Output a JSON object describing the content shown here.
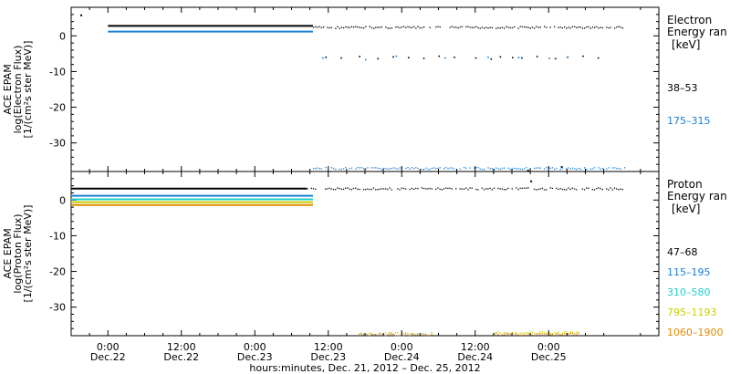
{
  "chart_data": [
    {
      "type": "scatter",
      "panel": "electron",
      "ylabel": [
        "ACE EPAM",
        "log(Electron Flux)",
        "[1/(cm²s ster MeV)]"
      ],
      "ylim": [
        -38,
        8
      ],
      "yticks": [
        0,
        -10,
        -20,
        -30
      ],
      "xlim_hours": [
        0,
        96
      ],
      "legend": {
        "title": "Electron",
        "subtitle": "Energy ran",
        "unit": "[keV]",
        "placement": "right",
        "entries": [
          {
            "label": "38–53",
            "color": "#000000"
          },
          {
            "label": "175–315",
            "color": "#1a7fd4"
          }
        ]
      },
      "series": [
        {
          "name": "38–53",
          "color": "#000000",
          "segments": [
            {
              "x0": 6,
              "x1": 39.5,
              "y": 2.8,
              "style": "solid"
            },
            {
              "x0": 39.5,
              "x1": 90.5,
              "y": 2.5,
              "style": "dots"
            }
          ],
          "points": [
            [
              41,
              -5.5
            ],
            [
              47,
              -6.0
            ],
            [
              53,
              -5.8
            ],
            [
              58,
              -6.2
            ],
            [
              61.5,
              -5.5
            ],
            [
              66,
              -6.0
            ],
            [
              69,
              -5.2
            ],
            [
              73,
              -6.0
            ],
            [
              76,
              -5.8
            ],
            [
              86,
              -5.5
            ],
            [
              88,
              -6.2
            ],
            [
              92,
              -5.8
            ],
            [
              94,
              -6.2
            ],
            [
              100,
              -5.8
            ],
            [
              103,
              -6.4
            ],
            [
              108,
              -5.5
            ],
            [
              113,
              -5.7
            ],
            [
              120,
              -6.0
            ],
            [
              123,
              -5.6
            ],
            [
              127,
              -5.9
            ],
            [
              131,
              -6.1
            ],
            [
              135,
              -5.4
            ],
            [
              138,
              -6.0
            ]
          ],
          "points_hours": [
            41.5,
            44,
            47,
            50,
            52.5,
            55,
            57.5,
            60,
            62.5,
            66,
            68.5,
            70,
            72,
            73.5,
            76,
            79,
            81,
            83.5,
            86
          ],
          "points_y": [
            -5.8,
            -6.0,
            -5.6,
            -6.2,
            -5.7,
            -5.9,
            -6.1,
            -5.5,
            -5.8,
            -6.0,
            -6.3,
            -5.7,
            -5.9,
            -6.0,
            -5.6,
            -6.2,
            -5.8,
            -5.5,
            -6.0
          ],
          "outliers": [
            [
              1.5,
              6.0
            ],
            [
              74.5,
              -37.5
            ],
            [
              80,
              -36.5
            ]
          ]
        },
        {
          "name": "175–315",
          "color": "#1a7fd4",
          "segments": [
            {
              "x0": 6,
              "x1": 39.5,
              "y": 1.2,
              "style": "solid"
            },
            {
              "x0": 39.5,
              "x1": 90.5,
              "y": -37.0,
              "style": "dots"
            }
          ],
          "points_hours": [
            41,
            48,
            53,
            61,
            68,
            73,
            78,
            81
          ],
          "points_y": [
            -6.0,
            -6.5,
            -5.5,
            -6.0,
            -5.8,
            -5.9,
            -6.1,
            -5.7
          ]
        }
      ]
    },
    {
      "type": "scatter",
      "panel": "proton",
      "ylabel": [
        "ACE EPAM",
        "log(Proton Flux)",
        "[1/(cm²s ster MeV)]"
      ],
      "ylim": [
        -38,
        8
      ],
      "yticks": [
        0,
        -10,
        -20,
        -30
      ],
      "xlim_hours": [
        0,
        96
      ],
      "legend": {
        "title": "Proton",
        "subtitle": "Energy ran",
        "unit": "[keV]",
        "placement": "right",
        "entries": [
          {
            "label": "47–68",
            "color": "#000000"
          },
          {
            "label": "115–195",
            "color": "#1a7fd4"
          },
          {
            "label": "310–580",
            "color": "#22cccc"
          },
          {
            "label": "795–1193",
            "color": "#cccc00"
          },
          {
            "label": "1060–1900",
            "color": "#e08a00"
          }
        ]
      },
      "series": [
        {
          "name": "47–68",
          "color": "#000000",
          "segments": [
            {
              "x0": 0,
              "x1": 38.5,
              "y": 3.2,
              "style": "solid"
            },
            {
              "x0": 38.5,
              "x1": 90.5,
              "y": 3.3,
              "style": "dots"
            }
          ],
          "outliers": [
            [
              75,
              5.5
            ]
          ]
        },
        {
          "name": "115–195",
          "color": "#1a7fd4",
          "segments": [
            {
              "x0": 0,
              "x1": 39.5,
              "y": 1.2,
              "style": "solid"
            }
          ]
        },
        {
          "name": "310–580",
          "color": "#22cccc",
          "segments": [
            {
              "x0": 0,
              "x1": 39.5,
              "y": 0.2,
              "style": "solid"
            }
          ]
        },
        {
          "name": "795–1193",
          "color": "#cccc00",
          "segments": [
            {
              "x0": 0,
              "x1": 39.5,
              "y": -0.6,
              "style": "solid"
            },
            {
              "x0": 47,
              "x1": 59,
              "y": -37.2,
              "style": "dots"
            },
            {
              "x0": 69,
              "x1": 83,
              "y": -37.0,
              "style": "dots"
            }
          ]
        },
        {
          "name": "1060–1900",
          "color": "#e08a00",
          "segments": [
            {
              "x0": 0,
              "x1": 39.5,
              "y": -1.4,
              "style": "solid"
            },
            {
              "x0": 47,
              "x1": 59,
              "y": -37.6,
              "style": "dots"
            },
            {
              "x0": 69,
              "x1": 83,
              "y": -37.4,
              "style": "dots"
            }
          ]
        }
      ]
    }
  ],
  "x_axis": {
    "ticks": [
      {
        "hours": 6,
        "time": "0:00",
        "date": "Dec.22"
      },
      {
        "hours": 18,
        "time": "12:00",
        "date": "Dec.22"
      },
      {
        "hours": 30,
        "time": "0:00",
        "date": "Dec.23"
      },
      {
        "hours": 42,
        "time": "12:00",
        "date": "Dec.23"
      },
      {
        "hours": 54,
        "time": "0:00",
        "date": "Dec.24"
      },
      {
        "hours": 66,
        "time": "12:00",
        "date": "Dec.24"
      },
      {
        "hours": 78,
        "time": "0:00",
        "date": "Dec.25"
      }
    ],
    "title": "hours:minutes, Dec. 21, 2012 – Dec. 25, 2012"
  }
}
